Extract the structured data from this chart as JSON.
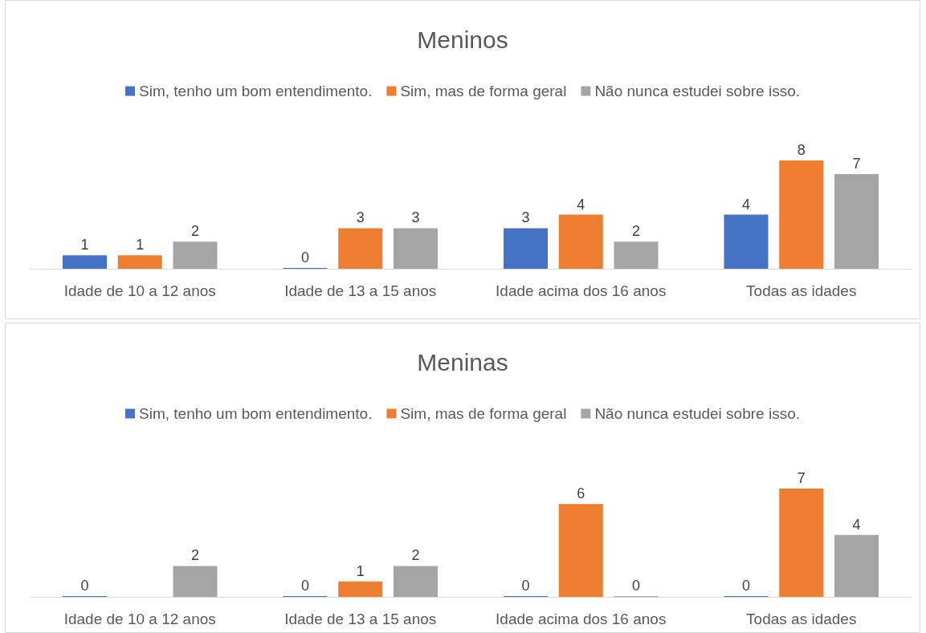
{
  "chart_data": [
    {
      "type": "bar",
      "title": "Meninos",
      "categories": [
        "Idade de 10 a 12 anos",
        "Idade de 13 a 15 anos",
        "Idade acima dos 16 anos",
        "Todas as idades"
      ],
      "series": [
        {
          "name": "Sim, tenho um bom entendimento.",
          "color": "#4472c4",
          "values": [
            1,
            0,
            3,
            4
          ]
        },
        {
          "name": "Sim, mas de forma geral",
          "color": "#ed7d31",
          "values": [
            1,
            3,
            4,
            8
          ]
        },
        {
          "name": "Não nunca estudei sobre isso.",
          "color": "#a5a5a5",
          "values": [
            2,
            3,
            2,
            7
          ]
        }
      ],
      "data_labels": true,
      "legend": "top",
      "grid": false
    },
    {
      "type": "bar",
      "title": "Meninas",
      "categories": [
        "Idade de 10 a 12 anos",
        "Idade de 13 a 15 anos",
        "Idade acima dos 16 anos",
        "Todas as idades"
      ],
      "series": [
        {
          "name": "Sim, tenho um bom entendimento.",
          "color": "#4472c4",
          "values": [
            0,
            0,
            0,
            0
          ]
        },
        {
          "name": "Sim, mas de forma geral",
          "color": "#ed7d31",
          "values": [
            null,
            1,
            6,
            7
          ]
        },
        {
          "name": "Não nunca estudei sobre isso.",
          "color": "#a5a5a5",
          "values": [
            2,
            2,
            0,
            4
          ]
        }
      ],
      "data_labels": true,
      "legend": "top",
      "grid": false
    }
  ]
}
